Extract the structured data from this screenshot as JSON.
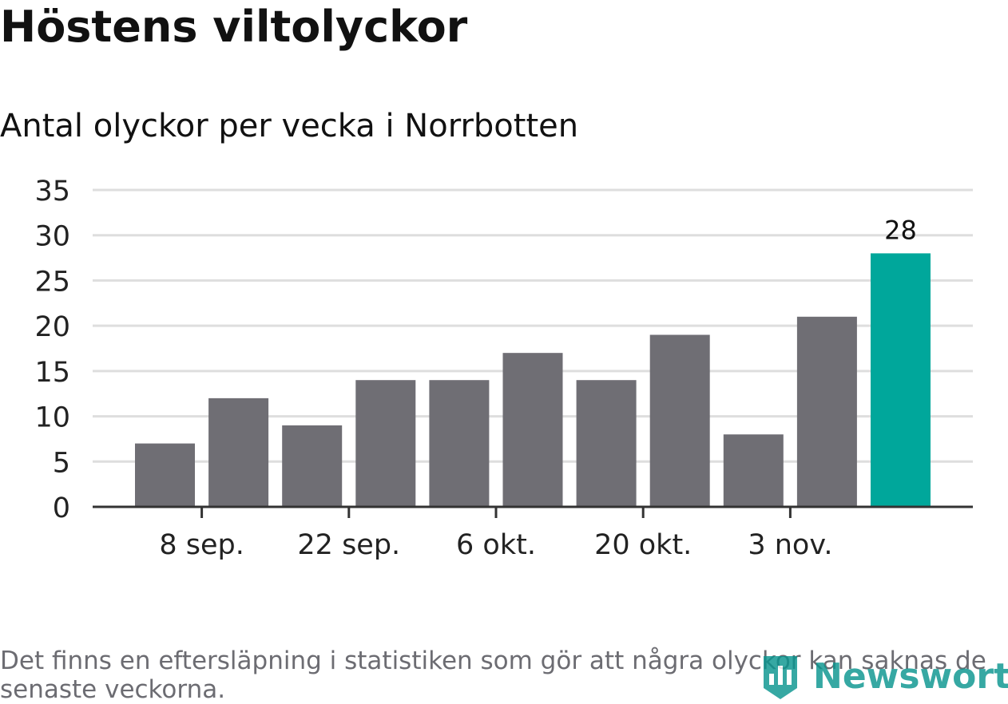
{
  "title": "Höstens viltolyckor",
  "subtitle": "Antal olyckor per vecka i Norrbotten",
  "footnote": "Det finns en eftersläpning i statistiken som gör att några olyckor kan saknas de senaste veckorna.",
  "logo": {
    "text": "Newsworthy",
    "icon": "bar-chart-badge-icon"
  },
  "colors": {
    "bar": "#6f6e74",
    "highlight": "#00a79b",
    "grid": "#dedede",
    "axis": "#333333",
    "brand": "#0a958f"
  },
  "chart_data": {
    "type": "bar",
    "values": [
      7,
      12,
      9,
      14,
      14,
      17,
      14,
      19,
      8,
      21,
      28
    ],
    "highlight_index": 10,
    "data_labels": [
      "",
      "",
      "",
      "",
      "",
      "",
      "",
      "",
      "",
      "",
      "28"
    ],
    "x_tick_labels": [
      {
        "label": "8 sep.",
        "bar_index": 1
      },
      {
        "label": "22 sep.",
        "bar_index": 3
      },
      {
        "label": "6 okt.",
        "bar_index": 5
      },
      {
        "label": "20 okt.",
        "bar_index": 7
      },
      {
        "label": "3 nov.",
        "bar_index": 9
      }
    ],
    "y_ticks": [
      0,
      5,
      10,
      15,
      20,
      25,
      30,
      35
    ],
    "ylim": [
      0,
      35
    ],
    "grid": true,
    "legend": "none"
  }
}
